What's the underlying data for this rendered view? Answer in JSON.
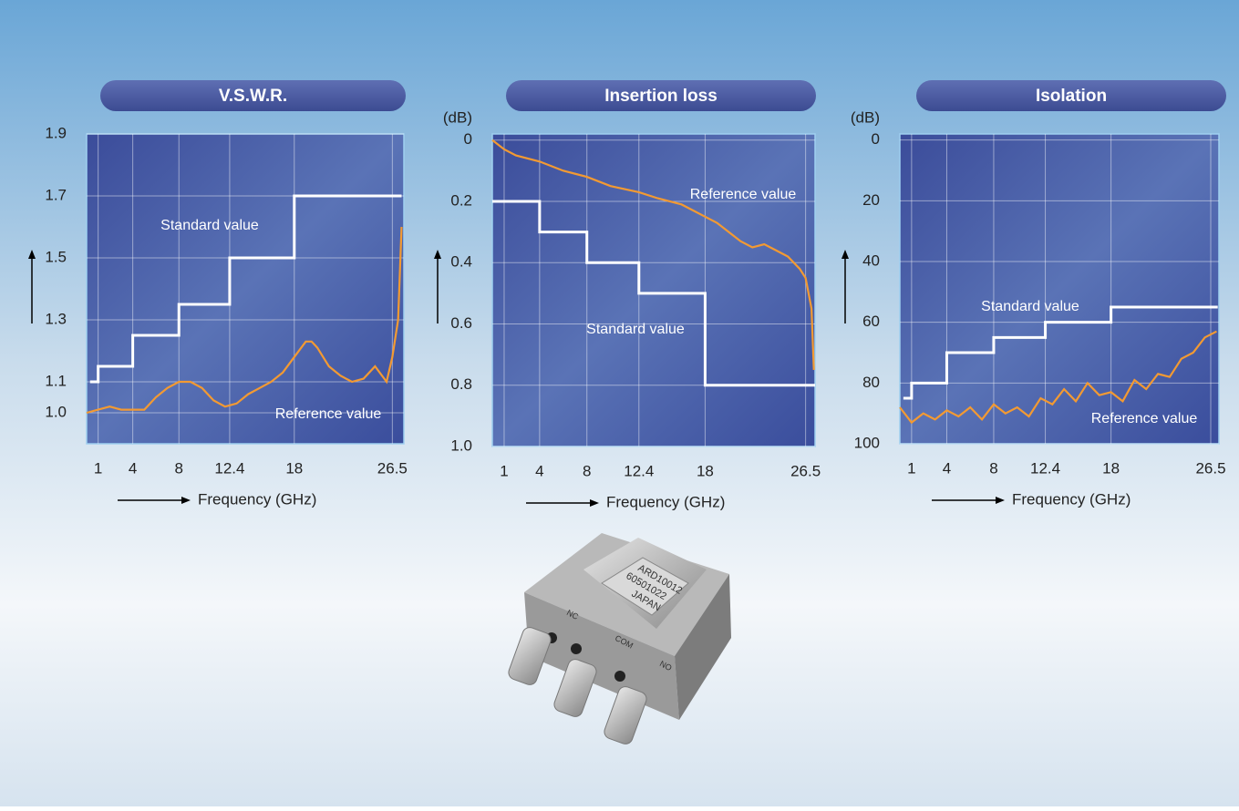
{
  "chart_data": [
    {
      "type": "line",
      "title": "V.S.W.R.",
      "x_label": "Frequency (GHz)",
      "xlim": [
        0,
        27.5
      ],
      "xticks": [
        1,
        4,
        8,
        12.4,
        18,
        26.5
      ],
      "ylim": [
        0.9,
        1.9
      ],
      "yticks": [
        {
          "value": 1,
          "label": "1.0"
        },
        1.1,
        1.3,
        1.5,
        1.7,
        1.9
      ],
      "grid": true,
      "series": [
        {
          "name": "Standard value",
          "color": "#ffffff",
          "x": [
            0.3,
            1,
            1,
            4,
            4,
            8,
            8,
            12.4,
            12.4,
            18,
            18,
            27.3
          ],
          "values": [
            1.1,
            1.1,
            1.15,
            1.15,
            1.25,
            1.25,
            1.35,
            1.35,
            1.5,
            1.5,
            1.7,
            1.7
          ]
        },
        {
          "name": "Reference value",
          "color": "#f39a32",
          "x": [
            0,
            1,
            2,
            3,
            5,
            6,
            7,
            8,
            9,
            10,
            11,
            12,
            13,
            14,
            15,
            16,
            17,
            18,
            19,
            19.5,
            20,
            20.5,
            21,
            22,
            23,
            24,
            25,
            26,
            26.5,
            27,
            27.3
          ],
          "values": [
            1.0,
            1.01,
            1.02,
            1.01,
            1.01,
            1.05,
            1.08,
            1.1,
            1.1,
            1.08,
            1.04,
            1.02,
            1.03,
            1.06,
            1.08,
            1.1,
            1.13,
            1.18,
            1.23,
            1.23,
            1.21,
            1.18,
            1.15,
            1.12,
            1.1,
            1.11,
            1.15,
            1.1,
            1.18,
            1.3,
            1.6
          ]
        }
      ]
    },
    {
      "type": "line",
      "title": "Insertion loss",
      "x_label": "Frequency (GHz)",
      "y_label": "(dB)",
      "xlim": [
        0,
        27.3
      ],
      "xticks": [
        1,
        4,
        8,
        12.4,
        18,
        26.5
      ],
      "ylim": [
        1,
        -0.02
      ],
      "yticks": [
        0,
        0.2,
        0.4,
        0.6,
        0.8,
        {
          "value": 1,
          "label": "1.0"
        }
      ],
      "grid": true,
      "series": [
        {
          "name": "Standard value",
          "color": "#ffffff",
          "x": [
            0,
            4,
            4,
            8,
            8,
            12.4,
            12.4,
            18,
            18,
            27.3
          ],
          "values": [
            0.2,
            0.2,
            0.3,
            0.3,
            0.4,
            0.4,
            0.5,
            0.5,
            0.8,
            0.8
          ]
        },
        {
          "name": "Reference value",
          "color": "#f39a32",
          "x": [
            0,
            1,
            2,
            4,
            6,
            8,
            10,
            12.4,
            14,
            15,
            16,
            18,
            19,
            20,
            21,
            22,
            23,
            24,
            25,
            26,
            26.5,
            27,
            27.2
          ],
          "values": [
            0,
            0.03,
            0.05,
            0.07,
            0.1,
            0.12,
            0.15,
            0.17,
            0.19,
            0.2,
            0.21,
            0.25,
            0.27,
            0.3,
            0.33,
            0.35,
            0.34,
            0.36,
            0.38,
            0.42,
            0.45,
            0.55,
            0.75
          ]
        }
      ]
    },
    {
      "type": "line",
      "title": "Isolation",
      "x_label": "Frequency (GHz)",
      "y_label": "(dB)",
      "xlim": [
        0,
        27.2
      ],
      "xticks": [
        1,
        4,
        8,
        12.4,
        18,
        26.5
      ],
      "ylim": [
        100,
        -2
      ],
      "yticks": [
        0,
        20,
        40,
        60,
        80,
        100
      ],
      "grid": true,
      "series": [
        {
          "name": "Standard value",
          "color": "#ffffff",
          "x": [
            0.3,
            1,
            1,
            4,
            4,
            8,
            8,
            12.4,
            12.4,
            18,
            18,
            27.1
          ],
          "values": [
            85,
            85,
            80,
            80,
            70,
            70,
            65,
            65,
            60,
            60,
            55,
            55
          ]
        },
        {
          "name": "Reference value",
          "color": "#f39a32",
          "x": [
            0,
            1,
            2,
            3,
            4,
            5,
            6,
            7,
            8,
            9,
            10,
            11,
            12,
            13,
            14,
            15,
            16,
            17,
            18,
            19,
            20,
            21,
            22,
            23,
            24,
            25,
            26,
            27
          ],
          "values": [
            88,
            93,
            90,
            92,
            89,
            91,
            88,
            92,
            87,
            90,
            88,
            91,
            85,
            87,
            82,
            86,
            80,
            84,
            83,
            86,
            79,
            82,
            77,
            78,
            72,
            70,
            65,
            63
          ]
        }
      ]
    }
  ],
  "product_labels": [
    "ARD10012",
    "60501022",
    "JAPAN",
    "NC",
    "COM",
    "NO"
  ]
}
